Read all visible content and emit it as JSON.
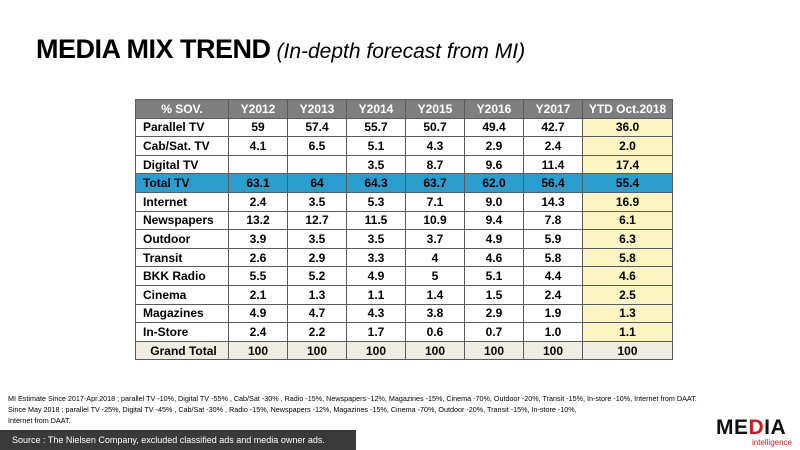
{
  "title": {
    "main": "MEDIA MIX TREND",
    "sub": "(In-depth forecast from MI)"
  },
  "table": {
    "headers": [
      "% SOV.",
      "Y2012",
      "Y2013",
      "Y2014",
      "Y2015",
      "Y2016",
      "Y2017",
      "YTD Oct.2018"
    ],
    "rows": [
      {
        "media": "Parallel TV",
        "values": [
          "59",
          "57.4",
          "55.7",
          "50.7",
          "49.4",
          "42.7",
          "36.0"
        ]
      },
      {
        "media": "Cab/Sat. TV",
        "values": [
          "4.1",
          "6.5",
          "5.1",
          "4.3",
          "2.9",
          "2.4",
          "2.0"
        ]
      },
      {
        "media": "Digital TV",
        "values": [
          "",
          "",
          "3.5",
          "8.7",
          "9.6",
          "11.4",
          "17.4"
        ]
      },
      {
        "media": "Total TV",
        "values": [
          "63.1",
          "64",
          "64.3",
          "63.7",
          "62.0",
          "56.4",
          "55.4"
        ]
      },
      {
        "media": "Internet",
        "values": [
          "2.4",
          "3.5",
          "5.3",
          "7.1",
          "9.0",
          "14.3",
          "16.9"
        ]
      },
      {
        "media": "Newspapers",
        "values": [
          "13.2",
          "12.7",
          "11.5",
          "10.9",
          "9.4",
          "7.8",
          "6.1"
        ]
      },
      {
        "media": "Outdoor",
        "values": [
          "3.9",
          "3.5",
          "3.5",
          "3.7",
          "4.9",
          "5.9",
          "6.3"
        ]
      },
      {
        "media": "Transit",
        "values": [
          "2.6",
          "2.9",
          "3.3",
          "4",
          "4.6",
          "5.8",
          "5.8"
        ]
      },
      {
        "media": "BKK Radio",
        "values": [
          "5.5",
          "5.2",
          "4.9",
          "5",
          "5.1",
          "4.4",
          "4.6"
        ]
      },
      {
        "media": "Cinema",
        "values": [
          "2.1",
          "1.3",
          "1.1",
          "1.4",
          "1.5",
          "2.4",
          "2.5"
        ]
      },
      {
        "media": "Magazines",
        "values": [
          "4.9",
          "4.7",
          "4.3",
          "3.8",
          "2.9",
          "1.9",
          "1.3"
        ]
      },
      {
        "media": "In-Store",
        "values": [
          "2.4",
          "2.2",
          "1.7",
          "0.6",
          "0.7",
          "1.0",
          "1.1"
        ]
      },
      {
        "media": "Grand Total",
        "values": [
          "100",
          "100",
          "100",
          "100",
          "100",
          "100",
          "100"
        ]
      }
    ]
  },
  "notes": [
    "MI Estimate Since 2017-Apr.2018 ; parallel TV  -10%, Digital TV  -55% , Cab/Sat  -30% , Radio -15%,  Newspapers  -12%, Magazines  -15%, Cinema  -70%, Outdoor  -20%, Transit  -15%, In-store  -10%, Internet from DAAT.",
    "Since May 2018 ; parallel TV  -25%, Digital TV  -45% , Cab/Sat  -30% , Radio  -15%, Newspapers  -12%, Magazines  -15%, Cinema  -70%, Outdoor  -20%, Transit  -15%, In-store  -10%,",
    "Internet from DAAT."
  ],
  "source": "Source :  The Nielsen Company, excluded  classified  ads  and  media owner ads.",
  "logo": {
    "word_prefix": "ME",
    "word_accent": "D",
    "word_suffix": "IA",
    "subtext": "intelligence"
  },
  "colors": {
    "header_bg": "#7f7f7f",
    "total_tv_bg": "#2b9ed0",
    "ytd_bg": "#fbf6c1",
    "grand_total_bg": "#efece1",
    "source_bar_bg": "#3a3a3a",
    "logo_accent": "#d7191d"
  }
}
